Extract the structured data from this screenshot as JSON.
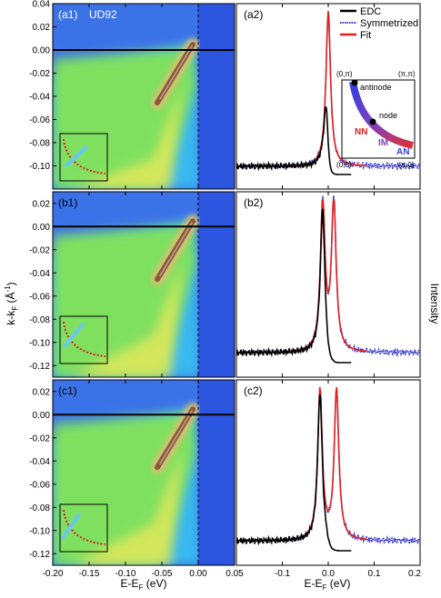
{
  "chart_data": [
    {
      "id": "a1",
      "type": "heatmap",
      "panel_label": "(a1)",
      "sample_label": "UD92",
      "x_ticks": [
        -0.2,
        -0.15,
        -0.1,
        -0.05,
        0.0
      ],
      "y_ticks": [
        0.04,
        0.02,
        0.0,
        -0.02,
        -0.04,
        -0.06,
        -0.08,
        -0.1
      ],
      "xlim": [
        -0.2,
        0.05
      ],
      "ylim": [
        -0.12,
        0.04
      ],
      "y_tick_labels": [
        "0.04",
        "0.02",
        "0.00",
        "-0.02",
        "-0.04",
        "-0.06",
        "-0.08",
        "-0.10"
      ],
      "dispersion": {
        "k_at_EF": 0.0,
        "slope_k_per_eV": 2.4
      },
      "inset": {
        "cut_position": "near node"
      }
    },
    {
      "id": "a2",
      "type": "line",
      "panel_label": "(a2)",
      "xlim": [
        -0.2,
        0.2
      ],
      "series": [
        {
          "name": "EDC",
          "color": "#000000",
          "style": "solid",
          "x": [
            -0.2,
            -0.05,
            -0.02,
            -0.01,
            -0.005,
            0.0,
            0.005,
            0.01,
            0.02,
            0.05
          ],
          "y": [
            0.02,
            0.03,
            0.1,
            0.3,
            0.52,
            0.3,
            0.09,
            0.03,
            0.02,
            0.0
          ]
        },
        {
          "name": "Symmetrized",
          "color": "#3030c8",
          "style": "dotted",
          "x": [
            -0.2,
            -0.1,
            -0.05,
            -0.02,
            -0.01,
            0.0,
            0.01,
            0.02,
            0.05,
            0.1,
            0.2
          ],
          "y": [
            0.03,
            0.05,
            0.07,
            0.18,
            0.4,
            1.0,
            0.4,
            0.18,
            0.07,
            0.05,
            0.03
          ]
        },
        {
          "name": "Fit",
          "color": "#e02020",
          "style": "solid",
          "x": [
            -0.08,
            -0.05,
            -0.02,
            -0.01,
            0.0,
            0.01,
            0.02,
            0.05,
            0.08
          ],
          "y": [
            0.05,
            0.07,
            0.18,
            0.4,
            0.98,
            0.4,
            0.18,
            0.07,
            0.05
          ]
        }
      ],
      "inset": {
        "labels": [
          "(0,π)",
          "(π,π)",
          "(0,0)",
          "(π,0)",
          "antinode",
          "node"
        ],
        "region_labels": [
          "NN",
          "IM",
          "AN"
        ]
      }
    },
    {
      "id": "b1",
      "type": "heatmap",
      "panel_label": "(b1)",
      "y_ticks": [
        0.02,
        0.0,
        -0.02,
        -0.04,
        -0.06,
        -0.08,
        -0.1,
        -0.12
      ],
      "y_tick_labels": [
        "0.02",
        "0.00",
        "-0.02",
        "-0.04",
        "-0.06",
        "-0.08",
        "-0.10",
        "-0.12"
      ],
      "ylim": [
        -0.13,
        0.03
      ],
      "inset": {
        "cut_position": "intermediate"
      }
    },
    {
      "id": "b2",
      "type": "line",
      "panel_label": "(b2)",
      "peaks_eV": [
        -0.012,
        0.012
      ]
    },
    {
      "id": "c1",
      "type": "heatmap",
      "panel_label": "(c1)",
      "y_ticks": [
        0.02,
        0.0,
        -0.02,
        -0.04,
        -0.06,
        -0.08,
        -0.1,
        -0.12
      ],
      "y_tick_labels": [
        "0.02",
        "0.00",
        "-0.02",
        "-0.04",
        "-0.06",
        "-0.08",
        "-0.10",
        "-0.12"
      ],
      "x_tick_labels": [
        "-0.20",
        "-0.15",
        "-0.10",
        "-0.05",
        "0.00",
        "0.05"
      ],
      "xlabel": "E-E",
      "xlabel_sub": "F",
      "xlabel_tail": " (eV)",
      "inset": {
        "cut_position": "toward antinode"
      }
    },
    {
      "id": "c2",
      "type": "line",
      "panel_label": "(c2)",
      "peaks_eV": [
        -0.018,
        0.018
      ],
      "x_tick_labels": [
        "-0.1",
        "0.0",
        "0.1",
        "0.2"
      ],
      "xlabel": "E-E",
      "xlabel_sub": "F",
      "xlabel_tail": " (eV)"
    }
  ],
  "axis_labels": {
    "left_y": "k-k",
    "left_y_sub": "F",
    "left_y_unit": " (Å",
    "left_y_unit_sup": "-1",
    "left_y_close": ")",
    "right_y": "Intensity"
  },
  "colors": {
    "map_bg": "#3c72e8",
    "map_low": "#37b8f0",
    "map_mid": "#7fe060",
    "map_high": "#e8e85a",
    "band": "#8a5a40",
    "above_ef": "#2c55e0",
    "edc": "#000000",
    "symmetrized": "#3030c8",
    "fit": "#e02020"
  }
}
